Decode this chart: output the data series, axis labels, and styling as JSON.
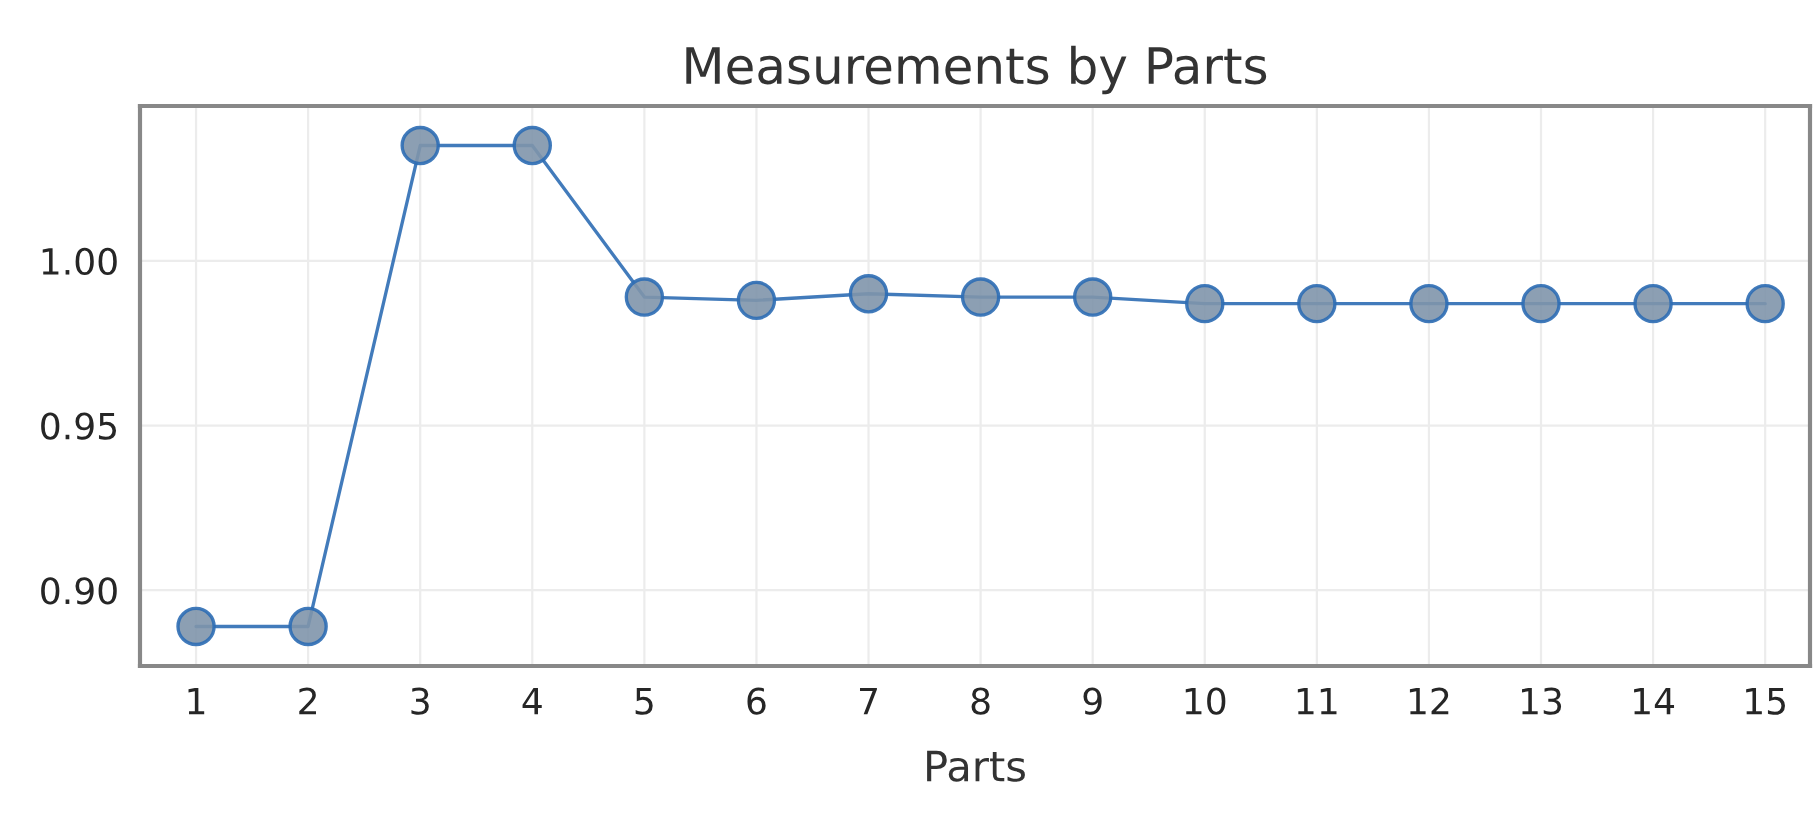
{
  "chart_data": {
    "type": "line",
    "title": "Measurements by Parts",
    "xlabel": "Parts",
    "categories": [
      "1",
      "2",
      "3",
      "4",
      "5",
      "6",
      "7",
      "8",
      "9",
      "10",
      "11",
      "12",
      "13",
      "14",
      "15"
    ],
    "series": [
      {
        "color": "#2e6db4",
        "values": [
          0.889,
          0.889,
          1.035,
          1.035,
          0.989,
          0.988,
          0.99,
          0.989,
          0.989,
          0.987,
          0.987,
          0.987,
          0.987,
          0.987,
          0.987
        ]
      }
    ],
    "ylim": [
      0.877,
      1.047
    ],
    "yticks": [
      {
        "value": 0.9,
        "label": "0.90"
      },
      {
        "value": 0.95,
        "label": "0.95"
      },
      {
        "value": 1.0,
        "label": "1.00"
      }
    ],
    "grid": true,
    "marker": "circle",
    "line_style": "solid"
  }
}
